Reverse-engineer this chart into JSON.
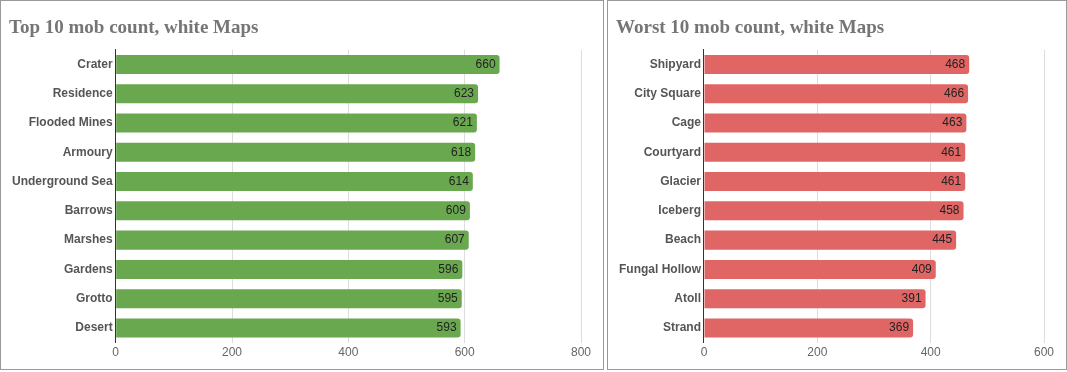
{
  "chart_data": [
    {
      "type": "bar",
      "orientation": "horizontal",
      "title": "Top 10 mob count, white Maps",
      "categories": [
        "Crater",
        "Residence",
        "Flooded Mines",
        "Armoury",
        "Underground Sea",
        "Barrows",
        "Marshes",
        "Gardens",
        "Grotto",
        "Desert"
      ],
      "values": [
        660,
        623,
        621,
        618,
        614,
        609,
        607,
        596,
        595,
        593
      ],
      "color": "#6aa84f",
      "xlim": [
        0,
        800
      ],
      "xticks": [
        0,
        200,
        400,
        600,
        800
      ],
      "grid": "x",
      "data_labels": true,
      "legend": false
    },
    {
      "type": "bar",
      "orientation": "horizontal",
      "title": "Worst 10 mob count, white Maps",
      "categories": [
        "Shipyard",
        "City Square",
        "Cage",
        "Courtyard",
        "Glacier",
        "Iceberg",
        "Beach",
        "Fungal Hollow",
        "Atoll",
        "Strand"
      ],
      "values": [
        468,
        466,
        463,
        461,
        461,
        458,
        445,
        409,
        391,
        369
      ],
      "color": "#e06666",
      "xlim": [
        0,
        600
      ],
      "xticks": [
        0,
        200,
        400,
        600
      ],
      "grid": "x",
      "data_labels": true,
      "legend": false
    }
  ]
}
